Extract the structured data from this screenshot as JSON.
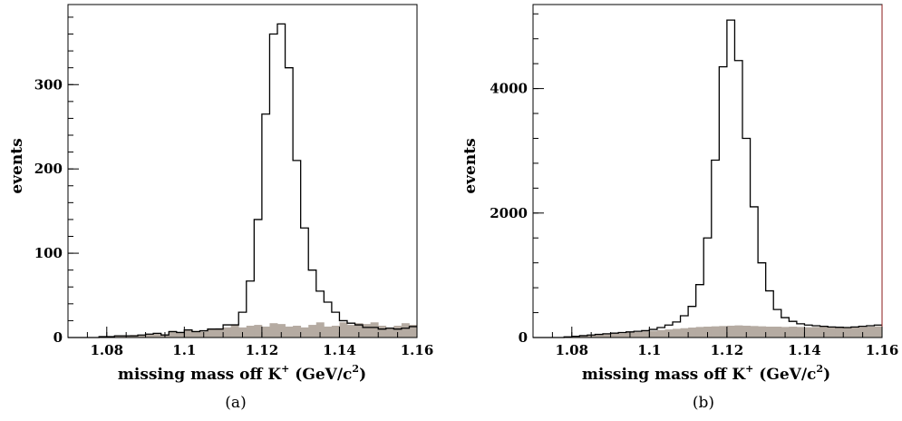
{
  "chart_data": [
    {
      "type": "histogram",
      "panel": "(a)",
      "xlabel": "missing mass off K",
      "xlabel_sup": "+",
      "xlabel_unit": " (GeV/c",
      "xlabel_unit_sup": "2",
      "xlabel_close": ")",
      "ylabel": "events",
      "xlim": [
        1.07,
        1.16
      ],
      "ylim": [
        0,
        395
      ],
      "xticks": [
        "1.08",
        "1.1",
        "1.12",
        "1.14",
        "1.16"
      ],
      "xtick_values": [
        1.08,
        1.1,
        1.12,
        1.14,
        1.16
      ],
      "yticks": [
        "0",
        "100",
        "200",
        "300"
      ],
      "ytick_values": [
        0,
        100,
        200,
        300
      ],
      "bin_edges_start": 1.07,
      "bin_width": 0.002,
      "series": [
        {
          "values": [
            0,
            0,
            0,
            0,
            1,
            1,
            2,
            2,
            2,
            3,
            4,
            5,
            3,
            7,
            6,
            9,
            7,
            8,
            10,
            10,
            15,
            15,
            30,
            67,
            140,
            265,
            360,
            372,
            320,
            210,
            130,
            80,
            55,
            42,
            30,
            20,
            17,
            15,
            12,
            12,
            10,
            11,
            10,
            11,
            13,
            12
          ]
        },
        {
          "values": [
            0,
            0,
            0,
            0,
            1,
            1,
            2,
            2,
            3,
            3,
            4,
            5,
            4,
            8,
            6,
            9,
            8,
            7,
            10,
            11,
            12,
            15,
            12,
            14,
            15,
            13,
            17,
            16,
            13,
            14,
            12,
            15,
            18,
            13,
            14,
            18,
            15,
            17,
            16,
            18,
            14,
            12,
            14,
            17,
            15,
            14
          ]
        }
      ]
    },
    {
      "type": "histogram",
      "panel": "(b)",
      "xlabel": "missing mass off K",
      "xlabel_sup": "+",
      "xlabel_unit": " (GeV/c",
      "xlabel_unit_sup": "2",
      "xlabel_close": ")",
      "ylabel": "events",
      "xlim": [
        1.07,
        1.16
      ],
      "ylim": [
        0,
        5350
      ],
      "xticks": [
        "1.08",
        "1.1",
        "1.12",
        "1.14",
        "1.16"
      ],
      "xtick_values": [
        1.08,
        1.1,
        1.12,
        1.14,
        1.16
      ],
      "yticks": [
        "0",
        "2000",
        "4000"
      ],
      "ytick_values": [
        0,
        2000,
        4000
      ],
      "bin_edges_start": 1.07,
      "bin_width": 0.002,
      "series": [
        {
          "values": [
            0,
            0,
            0,
            0,
            10,
            20,
            30,
            40,
            50,
            60,
            70,
            80,
            90,
            100,
            110,
            130,
            160,
            200,
            250,
            350,
            500,
            850,
            1600,
            2850,
            4350,
            5100,
            4450,
            3200,
            2100,
            1200,
            750,
            450,
            320,
            260,
            220,
            200,
            190,
            180,
            170,
            165,
            160,
            170,
            180,
            190,
            200
          ]
        },
        {
          "values": [
            0,
            0,
            0,
            0,
            10,
            20,
            30,
            40,
            50,
            55,
            60,
            70,
            80,
            90,
            100,
            110,
            120,
            130,
            140,
            150,
            160,
            170,
            175,
            180,
            185,
            190,
            195,
            190,
            185,
            180,
            175,
            175,
            170,
            175,
            170,
            165,
            170,
            175,
            170,
            165,
            170,
            175,
            170,
            175,
            180
          ]
        }
      ]
    }
  ]
}
